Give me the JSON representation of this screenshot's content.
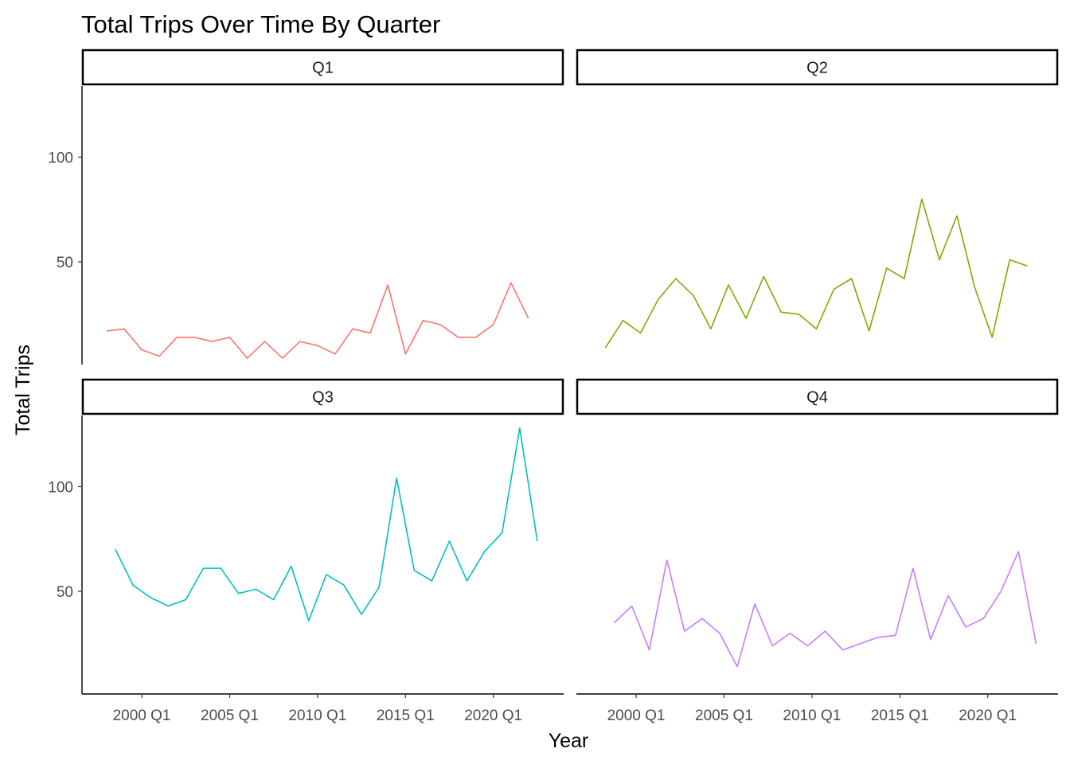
{
  "chart_data": {
    "type": "line",
    "title": "Total Trips Over Time By Quarter",
    "xlabel": "Year",
    "ylabel": "Total Trips",
    "x_ticks": [
      {
        "label": "2000 Q1",
        "year": 2000
      },
      {
        "label": "2005 Q1",
        "year": 2005
      },
      {
        "label": "2010 Q1",
        "year": 2010
      },
      {
        "label": "2015 Q1",
        "year": 2015
      },
      {
        "label": "2020 Q1",
        "year": 2020
      }
    ],
    "xlim": [
      1996.6,
      2024.0
    ],
    "y_ticks": [
      50,
      100
    ],
    "ylim": [
      1,
      134
    ],
    "grid": false,
    "legend": "none",
    "panels": [
      {
        "label": "Q1",
        "color": "#F8766D",
        "x": [
          1998,
          1999,
          2000,
          2001,
          2002,
          2003,
          2004,
          2005,
          2006,
          2007,
          2008,
          2009,
          2010,
          2011,
          2012,
          2013,
          2014,
          2015,
          2016,
          2017,
          2018,
          2019,
          2020,
          2021,
          2022
        ],
        "y": [
          17,
          18,
          8,
          5,
          14,
          14,
          12,
          14,
          4,
          12,
          4,
          12,
          10,
          6,
          18,
          16,
          39,
          6,
          22,
          20,
          14,
          14,
          20,
          40,
          23
        ]
      },
      {
        "label": "Q2",
        "color": "#7CAE00",
        "x": [
          1998.25,
          1999.25,
          2000.25,
          2001.25,
          2002.25,
          2003.25,
          2004.25,
          2005.25,
          2006.25,
          2007.25,
          2008.25,
          2009.25,
          2010.25,
          2011.25,
          2012.25,
          2013.25,
          2014.25,
          2015.25,
          2016.25,
          2017.25,
          2018.25,
          2019.25,
          2020.25,
          2021.25,
          2022.25
        ],
        "y": [
          9,
          22,
          16,
          32,
          42,
          34,
          18,
          39,
          23,
          43,
          26,
          25,
          18,
          37,
          42,
          17,
          47,
          42,
          80,
          51,
          72,
          38,
          14,
          51,
          48
        ]
      },
      {
        "label": "Q3",
        "color": "#00BFC4",
        "x": [
          1998.5,
          1999.5,
          2000.5,
          2001.5,
          2002.5,
          2003.5,
          2004.5,
          2005.5,
          2006.5,
          2007.5,
          2008.5,
          2009.5,
          2010.5,
          2011.5,
          2012.5,
          2013.5,
          2014.5,
          2015.5,
          2016.5,
          2017.5,
          2018.5,
          2019.5,
          2020.5,
          2021.5,
          2022.5
        ],
        "y": [
          70,
          53,
          47,
          43,
          46,
          61,
          61,
          49,
          51,
          46,
          62,
          36,
          58,
          53,
          39,
          52,
          104,
          60,
          55,
          74,
          55,
          69,
          78,
          128,
          74
        ]
      },
      {
        "label": "Q4",
        "color": "#C77CFF",
        "x": [
          1998.75,
          1999.75,
          2000.75,
          2001.75,
          2002.75,
          2003.75,
          2004.75,
          2005.75,
          2006.75,
          2007.75,
          2008.75,
          2009.75,
          2010.75,
          2011.75,
          2012.75,
          2013.75,
          2014.75,
          2015.75,
          2016.75,
          2017.75,
          2018.75,
          2019.75,
          2020.75,
          2021.75,
          2022.75
        ],
        "y": [
          35,
          43,
          22,
          65,
          31,
          37,
          30,
          14,
          44,
          24,
          30,
          24,
          31,
          22,
          25,
          28,
          29,
          61,
          27,
          48,
          33,
          37,
          50,
          69,
          25
        ]
      }
    ]
  }
}
